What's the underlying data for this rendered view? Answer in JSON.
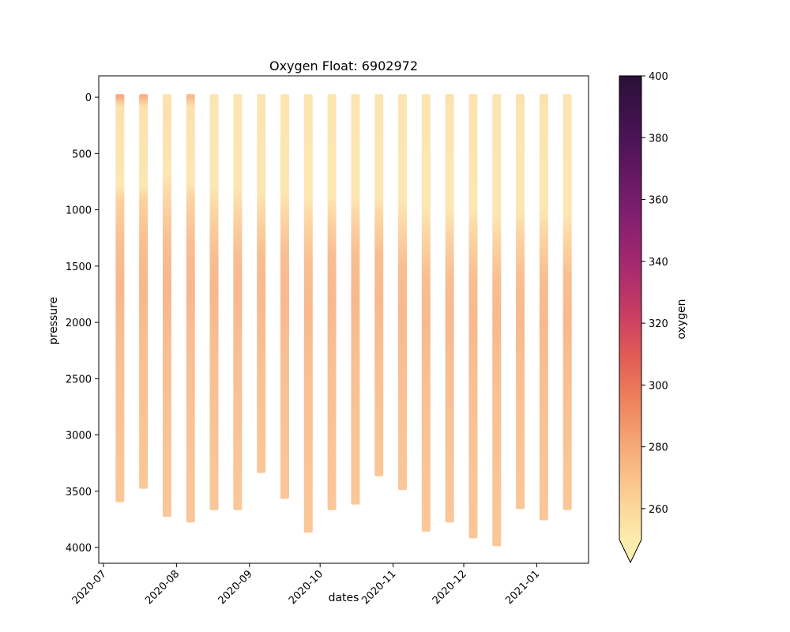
{
  "chart_data": {
    "type": "scatter",
    "title": "Oxygen Float: 6902972",
    "xlabel": "dates",
    "ylabel": "pressure",
    "colorbar_label": "oxygen",
    "colormap": "magma_r",
    "x_range": [
      "2020-06-29",
      "2021-01-23"
    ],
    "y_range": [
      4140,
      -190
    ],
    "y_inverted": true,
    "x_ticks": [
      "2020-07",
      "2020-08",
      "2020-09",
      "2020-10",
      "2020-11",
      "2020-12",
      "2021-01"
    ],
    "x_tick_dates": [
      "2020-07-01",
      "2020-08-01",
      "2020-09-01",
      "2020-10-01",
      "2020-11-01",
      "2020-12-01",
      "2021-01-01"
    ],
    "y_ticks": [
      0,
      500,
      1000,
      1500,
      2000,
      2500,
      3000,
      3500,
      4000
    ],
    "colorbar_range": [
      250,
      400
    ],
    "colorbar_ticks": [
      260,
      280,
      300,
      320,
      340,
      360,
      380,
      400
    ],
    "colorbar_extend": "min",
    "profiles": [
      {
        "date": "2020-07-08",
        "max_pressure": 3570,
        "oxygen": [
          {
            "p": 0,
            "o": 285
          },
          {
            "p": 80,
            "o": 258
          },
          {
            "p": 800,
            "o": 255
          },
          {
            "p": 900,
            "o": 266
          },
          {
            "p": 1300,
            "o": 276
          },
          {
            "p": 1700,
            "o": 280
          },
          {
            "p": 2200,
            "o": 276
          },
          {
            "p": 3570,
            "o": 272
          }
        ]
      },
      {
        "date": "2020-07-18",
        "max_pressure": 3450,
        "oxygen": [
          {
            "p": 0,
            "o": 282
          },
          {
            "p": 80,
            "o": 258
          },
          {
            "p": 800,
            "o": 255
          },
          {
            "p": 900,
            "o": 266
          },
          {
            "p": 1300,
            "o": 276
          },
          {
            "p": 1700,
            "o": 280
          },
          {
            "p": 2200,
            "o": 276
          },
          {
            "p": 3450,
            "o": 272
          }
        ]
      },
      {
        "date": "2020-07-28",
        "max_pressure": 3700,
        "oxygen": [
          {
            "p": 0,
            "o": 256
          },
          {
            "p": 100,
            "o": 258
          },
          {
            "p": 700,
            "o": 255
          },
          {
            "p": 900,
            "o": 264
          },
          {
            "p": 1300,
            "o": 276
          },
          {
            "p": 1700,
            "o": 280
          },
          {
            "p": 2200,
            "o": 276
          },
          {
            "p": 3700,
            "o": 272
          }
        ]
      },
      {
        "date": "2020-08-07",
        "max_pressure": 3750,
        "oxygen": [
          {
            "p": 0,
            "o": 278
          },
          {
            "p": 80,
            "o": 258
          },
          {
            "p": 750,
            "o": 255
          },
          {
            "p": 900,
            "o": 265
          },
          {
            "p": 1300,
            "o": 276
          },
          {
            "p": 1700,
            "o": 280
          },
          {
            "p": 2200,
            "o": 276
          },
          {
            "p": 3750,
            "o": 272
          }
        ]
      },
      {
        "date": "2020-08-17",
        "max_pressure": 3640,
        "oxygen": [
          {
            "p": 0,
            "o": 256
          },
          {
            "p": 800,
            "o": 255
          },
          {
            "p": 1000,
            "o": 264
          },
          {
            "p": 1400,
            "o": 276
          },
          {
            "p": 1700,
            "o": 280
          },
          {
            "p": 2200,
            "o": 276
          },
          {
            "p": 3640,
            "o": 272
          }
        ]
      },
      {
        "date": "2020-08-27",
        "max_pressure": 3640,
        "oxygen": [
          {
            "p": 0,
            "o": 256
          },
          {
            "p": 800,
            "o": 255
          },
          {
            "p": 1000,
            "o": 264
          },
          {
            "p": 1400,
            "o": 276
          },
          {
            "p": 1700,
            "o": 280
          },
          {
            "p": 2200,
            "o": 276
          },
          {
            "p": 3640,
            "o": 272
          }
        ]
      },
      {
        "date": "2020-09-06",
        "max_pressure": 3310,
        "oxygen": [
          {
            "p": 0,
            "o": 256
          },
          {
            "p": 850,
            "o": 255
          },
          {
            "p": 1050,
            "o": 264
          },
          {
            "p": 1400,
            "o": 276
          },
          {
            "p": 1700,
            "o": 279
          },
          {
            "p": 2200,
            "o": 276
          },
          {
            "p": 3310,
            "o": 272
          }
        ]
      },
      {
        "date": "2020-09-16",
        "max_pressure": 3540,
        "oxygen": [
          {
            "p": 0,
            "o": 256
          },
          {
            "p": 850,
            "o": 255
          },
          {
            "p": 1050,
            "o": 264
          },
          {
            "p": 1400,
            "o": 276
          },
          {
            "p": 1800,
            "o": 279
          },
          {
            "p": 2200,
            "o": 276
          },
          {
            "p": 3540,
            "o": 272
          }
        ]
      },
      {
        "date": "2020-09-26",
        "max_pressure": 3840,
        "oxygen": [
          {
            "p": 0,
            "o": 256
          },
          {
            "p": 900,
            "o": 255
          },
          {
            "p": 1100,
            "o": 264
          },
          {
            "p": 1500,
            "o": 276
          },
          {
            "p": 1900,
            "o": 279
          },
          {
            "p": 2300,
            "o": 276
          },
          {
            "p": 3840,
            "o": 272
          }
        ]
      },
      {
        "date": "2020-10-06",
        "max_pressure": 3640,
        "oxygen": [
          {
            "p": 0,
            "o": 256
          },
          {
            "p": 900,
            "o": 255
          },
          {
            "p": 1050,
            "o": 264
          },
          {
            "p": 1400,
            "o": 276
          },
          {
            "p": 1800,
            "o": 279
          },
          {
            "p": 2200,
            "o": 276
          },
          {
            "p": 3640,
            "o": 272
          }
        ]
      },
      {
        "date": "2020-10-16",
        "max_pressure": 3590,
        "oxygen": [
          {
            "p": 0,
            "o": 256
          },
          {
            "p": 900,
            "o": 255
          },
          {
            "p": 1050,
            "o": 264
          },
          {
            "p": 1400,
            "o": 276
          },
          {
            "p": 1800,
            "o": 279
          },
          {
            "p": 2200,
            "o": 276
          },
          {
            "p": 3590,
            "o": 272
          }
        ]
      },
      {
        "date": "2020-10-26",
        "max_pressure": 3340,
        "oxygen": [
          {
            "p": 0,
            "o": 256
          },
          {
            "p": 900,
            "o": 255
          },
          {
            "p": 1050,
            "o": 264
          },
          {
            "p": 1400,
            "o": 276
          },
          {
            "p": 1800,
            "o": 279
          },
          {
            "p": 2200,
            "o": 276
          },
          {
            "p": 3340,
            "o": 272
          }
        ]
      },
      {
        "date": "2020-11-05",
        "max_pressure": 3460,
        "oxygen": [
          {
            "p": 0,
            "o": 256
          },
          {
            "p": 950,
            "o": 255
          },
          {
            "p": 1150,
            "o": 264
          },
          {
            "p": 1500,
            "o": 276
          },
          {
            "p": 1900,
            "o": 279
          },
          {
            "p": 2300,
            "o": 276
          },
          {
            "p": 3460,
            "o": 272
          }
        ]
      },
      {
        "date": "2020-11-15",
        "max_pressure": 3830,
        "oxygen": [
          {
            "p": 0,
            "o": 256
          },
          {
            "p": 1000,
            "o": 255
          },
          {
            "p": 1200,
            "o": 264
          },
          {
            "p": 1600,
            "o": 276
          },
          {
            "p": 2000,
            "o": 279
          },
          {
            "p": 2400,
            "o": 276
          },
          {
            "p": 3830,
            "o": 272
          }
        ]
      },
      {
        "date": "2020-11-25",
        "max_pressure": 3750,
        "oxygen": [
          {
            "p": 0,
            "o": 258
          },
          {
            "p": 100,
            "o": 256
          },
          {
            "p": 1000,
            "o": 255
          },
          {
            "p": 1200,
            "o": 264
          },
          {
            "p": 1600,
            "o": 276
          },
          {
            "p": 2000,
            "o": 279
          },
          {
            "p": 2400,
            "o": 276
          },
          {
            "p": 3750,
            "o": 272
          }
        ]
      },
      {
        "date": "2020-12-05",
        "max_pressure": 3890,
        "oxygen": [
          {
            "p": 0,
            "o": 257
          },
          {
            "p": 1000,
            "o": 255
          },
          {
            "p": 1200,
            "o": 264
          },
          {
            "p": 1600,
            "o": 276
          },
          {
            "p": 2000,
            "o": 279
          },
          {
            "p": 2400,
            "o": 276
          },
          {
            "p": 3890,
            "o": 272
          }
        ]
      },
      {
        "date": "2020-12-15",
        "max_pressure": 3960,
        "oxygen": [
          {
            "p": 0,
            "o": 256
          },
          {
            "p": 1050,
            "o": 255
          },
          {
            "p": 1250,
            "o": 264
          },
          {
            "p": 1600,
            "o": 276
          },
          {
            "p": 2000,
            "o": 279
          },
          {
            "p": 2400,
            "o": 276
          },
          {
            "p": 3960,
            "o": 272
          }
        ]
      },
      {
        "date": "2020-12-25",
        "max_pressure": 3630,
        "oxygen": [
          {
            "p": 0,
            "o": 258
          },
          {
            "p": 100,
            "o": 256
          },
          {
            "p": 1000,
            "o": 255
          },
          {
            "p": 1200,
            "o": 264
          },
          {
            "p": 1600,
            "o": 276
          },
          {
            "p": 2000,
            "o": 279
          },
          {
            "p": 2400,
            "o": 276
          },
          {
            "p": 3630,
            "o": 272
          }
        ]
      },
      {
        "date": "2021-01-04",
        "max_pressure": 3730,
        "oxygen": [
          {
            "p": 0,
            "o": 258
          },
          {
            "p": 100,
            "o": 256
          },
          {
            "p": 1000,
            "o": 255
          },
          {
            "p": 1200,
            "o": 264
          },
          {
            "p": 1600,
            "o": 276
          },
          {
            "p": 2000,
            "o": 279
          },
          {
            "p": 2400,
            "o": 276
          },
          {
            "p": 3730,
            "o": 272
          }
        ]
      },
      {
        "date": "2021-01-14",
        "max_pressure": 3640,
        "oxygen": [
          {
            "p": 0,
            "o": 256
          },
          {
            "p": 1050,
            "o": 255
          },
          {
            "p": 1250,
            "o": 264
          },
          {
            "p": 1600,
            "o": 276
          },
          {
            "p": 2000,
            "o": 279
          },
          {
            "p": 2400,
            "o": 276
          },
          {
            "p": 3640,
            "o": 272
          }
        ]
      }
    ]
  }
}
